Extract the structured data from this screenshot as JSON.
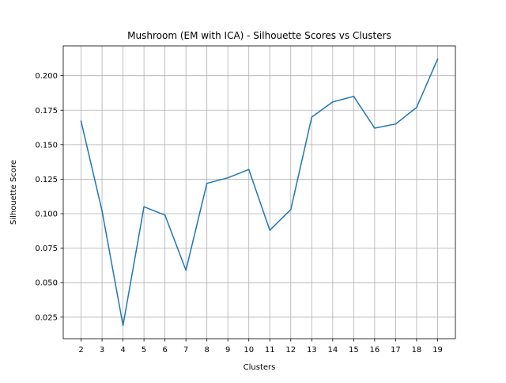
{
  "chart_data": {
    "type": "line",
    "title": "Mushroom (EM with ICA) - Silhouette Scores vs Clusters",
    "xlabel": "Clusters",
    "ylabel": "Silhouette Score",
    "x": [
      2,
      3,
      4,
      5,
      6,
      7,
      8,
      9,
      10,
      11,
      12,
      13,
      14,
      15,
      16,
      17,
      18,
      19
    ],
    "series": [
      {
        "values": [
          0.167,
          0.102,
          0.019,
          0.105,
          0.099,
          0.059,
          0.122,
          0.126,
          0.132,
          0.088,
          0.103,
          0.17,
          0.181,
          0.185,
          0.162,
          0.165,
          0.177,
          0.212
        ],
        "color": "#1f77b4"
      }
    ],
    "xlim": [
      1.15,
      19.85
    ],
    "ylim": [
      0.0094,
      0.2216
    ],
    "xticks": [
      "2",
      "3",
      "4",
      "5",
      "6",
      "7",
      "8",
      "9",
      "10",
      "11",
      "12",
      "13",
      "14",
      "15",
      "16",
      "17",
      "18",
      "19"
    ],
    "yticks": [
      "0.025",
      "0.050",
      "0.075",
      "0.100",
      "0.125",
      "0.150",
      "0.175",
      "0.200"
    ],
    "grid": true,
    "legend": "none"
  }
}
